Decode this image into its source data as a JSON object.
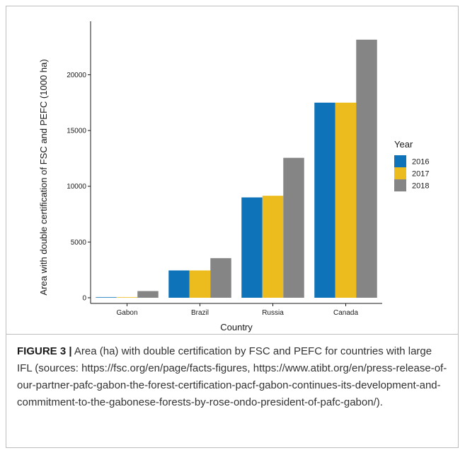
{
  "chart_data": {
    "type": "bar",
    "categories": [
      "Gabon",
      "Brazil",
      "Russia",
      "Canada"
    ],
    "series": [
      {
        "name": "2016",
        "color": "#0f73ba",
        "values": [
          50,
          2450,
          9000,
          17500
        ]
      },
      {
        "name": "2017",
        "color": "#ecbc1e",
        "values": [
          50,
          2450,
          9150,
          17500
        ]
      },
      {
        "name": "2018",
        "color": "#858585",
        "values": [
          600,
          3550,
          12550,
          23150
        ]
      }
    ],
    "xlabel": "Country",
    "ylabel": "Area with double certification of FSC and PEFC (1000 ha)",
    "yticks": [
      0,
      5000,
      10000,
      15000,
      20000
    ],
    "ylim": [
      0,
      24000
    ],
    "legend_title": "Year",
    "legend_position": "right",
    "grid": false
  },
  "caption": {
    "label": "FIGURE 3 |",
    "text": "Area (ha) with double certification by FSC and PEFC for countries with large IFL (sources: https://fsc.org/en/page/facts-figures, https://www.atibt.org/en/press-release-of-our-partner-pafc-gabon-the-forest-certification-pacf-gabon-continues-its-development-and-commitment-to-the-gabonese-forests-by-rose-ondo-president-of-pafc-gabon/)."
  }
}
